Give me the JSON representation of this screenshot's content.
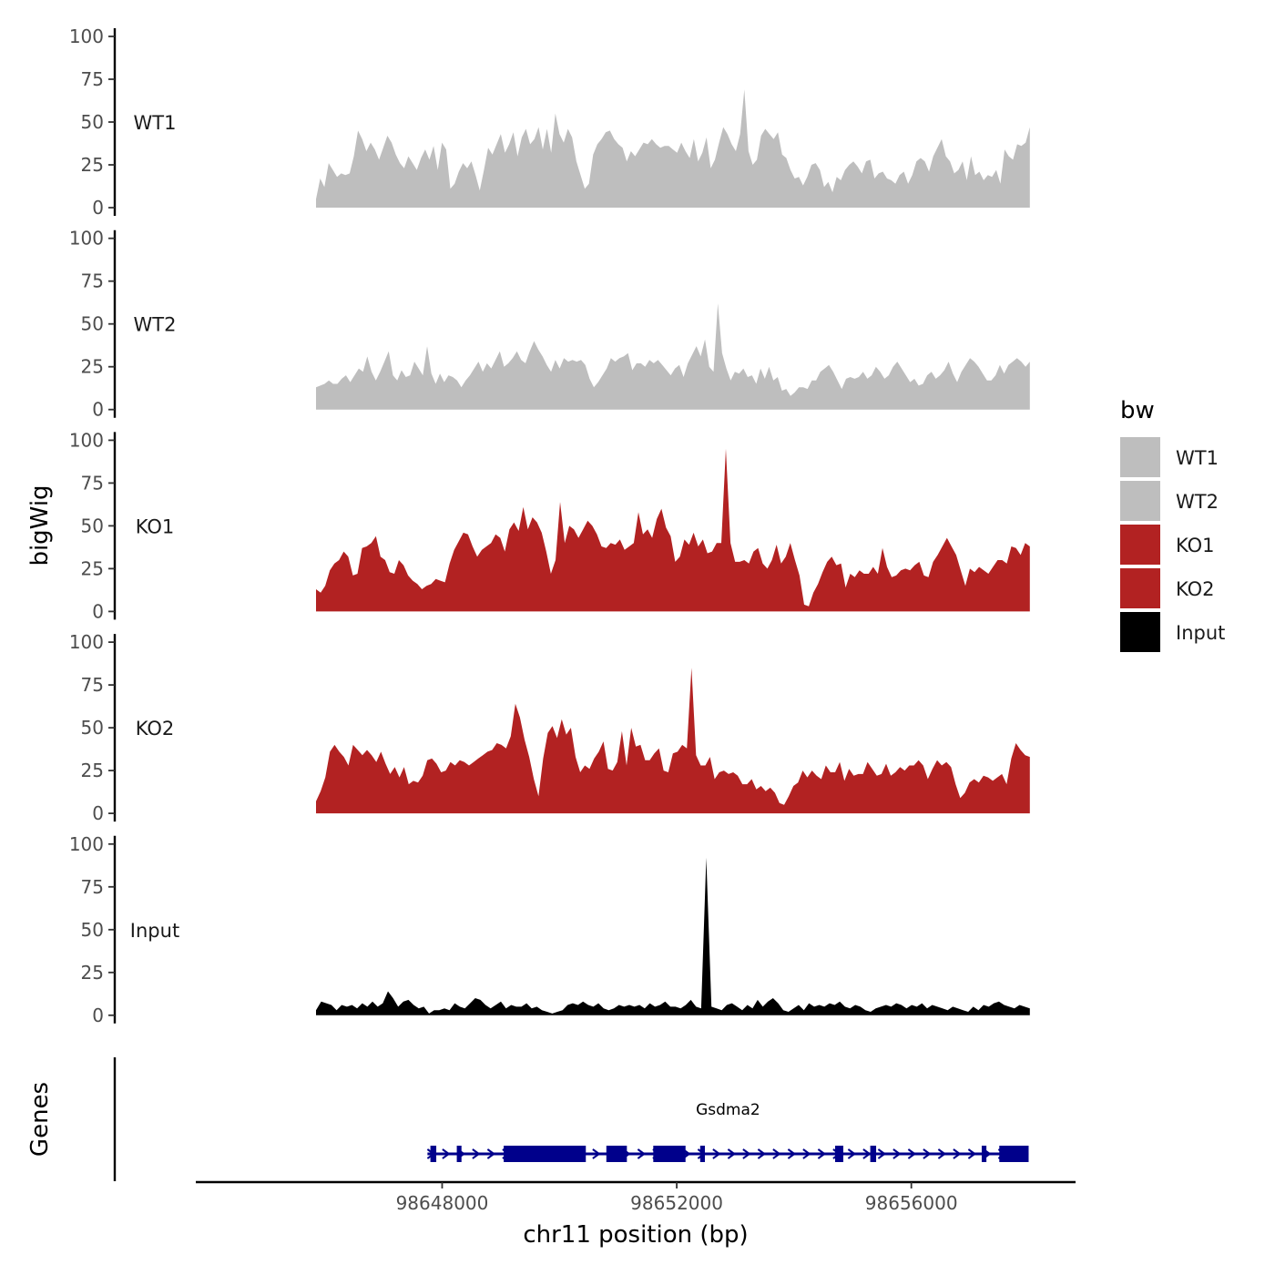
{
  "chart_data": {
    "type": "area",
    "title": "",
    "ylabel": "bigWig",
    "xlabel": "chr11 position (bp)",
    "genes_label": "Genes",
    "xlim": [
      98643800,
      98658800
    ],
    "ylim": [
      0,
      100
    ],
    "y_ticks": [
      0,
      25,
      50,
      75,
      100
    ],
    "y_tick_labels": [
      "0",
      "25",
      "50",
      "75",
      "100"
    ],
    "x_ticks": [
      98648000,
      98652000,
      98656000
    ],
    "x_tick_labels": [
      "98648000",
      "98652000",
      "98656000"
    ],
    "x_start": 98645850,
    "x_end": 98658020,
    "legend": {
      "title": "bw",
      "position": "right",
      "entries": [
        {
          "name": "WT1",
          "color": "#bebebe"
        },
        {
          "name": "WT2",
          "color": "#bebebe"
        },
        {
          "name": "KO1",
          "color": "#b22222"
        },
        {
          "name": "KO2",
          "color": "#b22222"
        },
        {
          "name": "Input",
          "color": "#000000"
        }
      ]
    },
    "series": [
      {
        "name": "WT1",
        "color": "#bebebe",
        "values": [
          5,
          17,
          12,
          26,
          22,
          18,
          20,
          19,
          20,
          30,
          45,
          40,
          33,
          38,
          34,
          28,
          35,
          42,
          38,
          31,
          26,
          23,
          30,
          26,
          22,
          29,
          34,
          28,
          36,
          22,
          38,
          34,
          11,
          14,
          21,
          26,
          23,
          27,
          19,
          10,
          22,
          35,
          31,
          37,
          43,
          32,
          37,
          44,
          30,
          41,
          46,
          37,
          40,
          47,
          34,
          46,
          32,
          55,
          43,
          38,
          46,
          41,
          27,
          19,
          11,
          14,
          31,
          37,
          40,
          44,
          45,
          40,
          37,
          35,
          27,
          33,
          30,
          34,
          38,
          37,
          40,
          37,
          35,
          36,
          36,
          34,
          32,
          38,
          33,
          29,
          40,
          27,
          32,
          41,
          23,
          28,
          38,
          47,
          43,
          37,
          33,
          43,
          69,
          33,
          25,
          28,
          42,
          46,
          43,
          40,
          44,
          31,
          29,
          22,
          17,
          18,
          13,
          18,
          25,
          26,
          22,
          12,
          15,
          9,
          18,
          16,
          22,
          25,
          27,
          24,
          20,
          27,
          28,
          17,
          20,
          21,
          17,
          16,
          14,
          19,
          21,
          14,
          19,
          27,
          29,
          27,
          21,
          30,
          35,
          40,
          30,
          27,
          20,
          22,
          27,
          16,
          30,
          19,
          21,
          16,
          19,
          18,
          22,
          14,
          34,
          30,
          28,
          37,
          36,
          38,
          47
        ]
      },
      {
        "name": "WT2",
        "color": "#bebebe",
        "values": [
          13,
          14,
          15,
          17,
          15,
          15,
          18,
          20,
          16,
          20,
          24,
          22,
          31,
          22,
          17,
          22,
          28,
          34,
          20,
          17,
          23,
          19,
          20,
          28,
          24,
          20,
          37,
          21,
          15,
          21,
          16,
          20,
          19,
          17,
          13,
          17,
          20,
          24,
          28,
          22,
          27,
          24,
          29,
          34,
          25,
          27,
          30,
          34,
          29,
          27,
          34,
          40,
          35,
          31,
          26,
          22,
          29,
          24,
          30,
          28,
          29,
          28,
          29,
          26,
          18,
          13,
          16,
          20,
          24,
          30,
          28,
          30,
          31,
          33,
          23,
          27,
          27,
          25,
          29,
          27,
          29,
          26,
          23,
          20,
          24,
          26,
          19,
          27,
          32,
          37,
          31,
          41,
          25,
          22,
          62,
          33,
          24,
          17,
          22,
          21,
          24,
          19,
          20,
          15,
          24,
          18,
          25,
          17,
          19,
          11,
          12,
          8,
          10,
          13,
          13,
          12,
          17,
          17,
          22,
          24,
          26,
          22,
          17,
          12,
          18,
          19,
          18,
          19,
          22,
          18,
          20,
          25,
          22,
          18,
          20,
          25,
          28,
          24,
          20,
          16,
          18,
          14,
          15,
          20,
          22,
          18,
          20,
          23,
          28,
          21,
          16,
          22,
          26,
          30,
          28,
          25,
          21,
          17,
          17,
          20,
          26,
          21,
          26,
          28,
          30,
          28,
          25,
          28
        ]
      },
      {
        "name": "KO1",
        "color": "#b22222",
        "values": [
          13,
          11,
          15,
          24,
          28,
          30,
          35,
          32,
          21,
          22,
          37,
          38,
          40,
          44,
          32,
          30,
          23,
          22,
          30,
          27,
          21,
          18,
          16,
          13,
          15,
          16,
          19,
          18,
          17,
          28,
          36,
          41,
          46,
          45,
          38,
          32,
          36,
          38,
          40,
          45,
          43,
          35,
          48,
          52,
          47,
          61,
          48,
          55,
          52,
          46,
          35,
          22,
          30,
          64,
          40,
          50,
          48,
          43,
          48,
          53,
          50,
          45,
          38,
          37,
          40,
          39,
          42,
          36,
          38,
          40,
          58,
          45,
          48,
          43,
          54,
          60,
          49,
          44,
          29,
          32,
          42,
          39,
          46,
          38,
          42,
          34,
          35,
          40,
          40,
          95,
          40,
          29,
          29,
          30,
          28,
          35,
          37,
          28,
          25,
          30,
          39,
          28,
          32,
          40,
          30,
          21,
          4,
          3,
          11,
          16,
          23,
          29,
          32,
          27,
          28,
          14,
          22,
          20,
          24,
          22,
          22,
          26,
          22,
          37,
          26,
          20,
          21,
          24,
          25,
          24,
          27,
          29,
          21,
          20,
          29,
          33,
          38,
          43,
          38,
          33,
          24,
          15,
          25,
          23,
          26,
          24,
          22,
          26,
          30,
          30,
          28,
          38,
          37,
          33,
          40,
          38
        ]
      },
      {
        "name": "KO2",
        "color": "#b22222",
        "values": [
          7,
          13,
          21,
          36,
          40,
          36,
          33,
          28,
          40,
          37,
          34,
          37,
          34,
          30,
          36,
          29,
          23,
          27,
          21,
          27,
          17,
          19,
          18,
          22,
          31,
          32,
          29,
          24,
          25,
          30,
          28,
          31,
          30,
          28,
          30,
          32,
          34,
          36,
          37,
          41,
          40,
          38,
          45,
          64,
          56,
          43,
          33,
          20,
          10,
          32,
          47,
          51,
          44,
          55,
          46,
          50,
          33,
          24,
          28,
          26,
          32,
          36,
          42,
          26,
          25,
          30,
          48,
          28,
          50,
          39,
          40,
          31,
          31,
          35,
          38,
          25,
          24,
          35,
          36,
          40,
          38,
          85,
          34,
          28,
          28,
          33,
          20,
          24,
          25,
          23,
          24,
          22,
          17,
          17,
          20,
          14,
          16,
          13,
          15,
          12,
          6,
          5,
          10,
          16,
          18,
          25,
          21,
          25,
          22,
          20,
          28,
          24,
          24,
          30,
          19,
          26,
          22,
          23,
          23,
          30,
          26,
          22,
          23,
          29,
          22,
          24,
          27,
          25,
          28,
          28,
          31,
          28,
          20,
          26,
          31,
          28,
          30,
          27,
          17,
          9,
          12,
          18,
          20,
          18,
          22,
          21,
          19,
          21,
          23,
          17,
          32,
          41,
          37,
          34,
          33
        ]
      },
      {
        "name": "Input",
        "color": "#000000",
        "values": [
          3,
          8,
          7,
          6,
          3,
          6,
          5,
          6,
          4,
          7,
          5,
          8,
          5,
          7,
          14,
          10,
          5,
          8,
          9,
          6,
          4,
          5,
          1,
          3,
          3,
          4,
          3,
          7,
          5,
          4,
          7,
          10,
          9,
          6,
          4,
          6,
          8,
          4,
          6,
          5,
          5,
          7,
          4,
          5,
          3,
          2,
          1,
          2,
          3,
          6,
          7,
          6,
          8,
          6,
          5,
          7,
          4,
          3,
          4,
          6,
          5,
          6,
          5,
          6,
          4,
          7,
          5,
          6,
          8,
          5,
          5,
          4,
          6,
          9,
          5,
          4,
          92,
          5,
          4,
          3,
          6,
          7,
          5,
          3,
          6,
          4,
          9,
          5,
          8,
          10,
          7,
          3,
          2,
          4,
          6,
          3,
          7,
          5,
          6,
          5,
          7,
          6,
          8,
          5,
          4,
          6,
          5,
          3,
          2,
          4,
          5,
          6,
          5,
          7,
          6,
          4,
          6,
          5,
          7,
          4,
          6,
          5,
          4,
          3,
          5,
          4,
          3,
          2,
          5,
          3,
          6,
          5,
          7,
          8,
          6,
          5,
          4,
          6,
          5,
          4
        ]
      }
    ],
    "genes": [
      {
        "name": "Gsdma2",
        "strand": "+",
        "color": "#00008b",
        "start": 98647750,
        "end": 98658000,
        "exons": [
          [
            98647800,
            98647900
          ],
          [
            98648250,
            98648330
          ],
          [
            98649050,
            98650450
          ],
          [
            98650800,
            98651150
          ],
          [
            98651600,
            98652150
          ],
          [
            98652400,
            98652480
          ],
          [
            98654700,
            98654840
          ],
          [
            98655300,
            98655400
          ],
          [
            98657200,
            98657280
          ],
          [
            98657500,
            98658000
          ]
        ]
      }
    ]
  }
}
